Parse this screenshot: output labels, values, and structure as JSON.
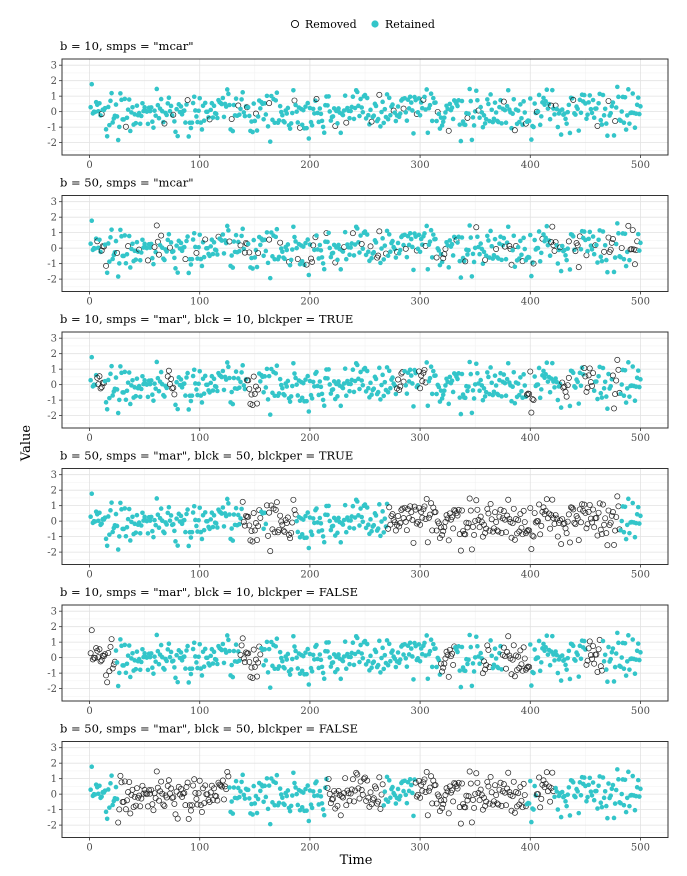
{
  "legend": {
    "removed": {
      "label": "Removed",
      "stroke": "#000000",
      "fill": "none"
    },
    "retained": {
      "label": "Retained",
      "fill": "#33C5C9"
    }
  },
  "chart_data": {
    "type": "scatter",
    "xlabel": "Time",
    "ylabel": "Value",
    "xlim": [
      -25,
      525
    ],
    "ylim": [
      -2.8,
      3.4
    ],
    "x_ticks": [
      0,
      100,
      200,
      300,
      400,
      500
    ],
    "y_ticks": [
      -2,
      -1,
      0,
      1,
      2,
      3
    ],
    "n_points": 500,
    "legend_position": "top-center",
    "grid": true,
    "panels": [
      {
        "title": "b = 10, smps = \"mcar\"",
        "removed_ranges": [
          [
            10,
            10
          ],
          [
            32,
            32
          ],
          [
            67,
            67
          ],
          [
            75,
            75
          ],
          [
            88,
            88
          ],
          [
            108,
            108
          ],
          [
            128,
            128
          ],
          [
            134,
            134
          ],
          [
            142,
            142
          ],
          [
            150,
            150
          ],
          [
            162,
            162
          ],
          [
            185,
            185
          ],
          [
            190,
            190
          ],
          [
            205,
            205
          ],
          [
            222,
            222
          ],
          [
            232,
            232
          ],
          [
            255,
            255
          ],
          [
            262,
            262
          ],
          [
            275,
            275
          ],
          [
            284,
            284
          ],
          [
            296,
            296
          ],
          [
            302,
            302
          ],
          [
            315,
            315
          ],
          [
            325,
            325
          ],
          [
            342,
            342
          ],
          [
            352,
            352
          ],
          [
            375,
            375
          ],
          [
            385,
            385
          ],
          [
            395,
            395
          ],
          [
            405,
            405
          ],
          [
            418,
            418
          ],
          [
            422,
            422
          ],
          [
            438,
            438
          ],
          [
            460,
            460
          ],
          [
            470,
            470
          ],
          [
            476,
            476
          ]
        ]
      },
      {
        "title": "b = 50, smps = \"mcar\"",
        "removed_ranges": [
          [
            6,
            6
          ],
          [
            14,
            14
          ],
          [
            24,
            24
          ],
          [
            34,
            34
          ],
          [
            44,
            44
          ],
          [
            52,
            52
          ],
          [
            58,
            58
          ],
          [
            64,
            64
          ],
          [
            72,
            72
          ],
          [
            86,
            86
          ],
          [
            96,
            96
          ],
          [
            104,
            104
          ],
          [
            116,
            116
          ],
          [
            126,
            126
          ],
          [
            136,
            136
          ],
          [
            144,
            144
          ],
          [
            152,
            152
          ],
          [
            162,
            162
          ],
          [
            172,
            172
          ],
          [
            180,
            180
          ],
          [
            188,
            188
          ],
          [
            196,
            196
          ],
          [
            204,
            204
          ],
          [
            214,
            214
          ],
          [
            222,
            222
          ],
          [
            230,
            230
          ],
          [
            238,
            238
          ],
          [
            246,
            246
          ],
          [
            254,
            254
          ],
          [
            262,
            262
          ],
          [
            268,
            268
          ],
          [
            278,
            278
          ],
          [
            286,
            286
          ],
          [
            296,
            296
          ],
          [
            304,
            304
          ],
          [
            314,
            314
          ],
          [
            322,
            322
          ],
          [
            332,
            332
          ],
          [
            340,
            340
          ],
          [
            350,
            350
          ],
          [
            358,
            358
          ],
          [
            368,
            368
          ],
          [
            376,
            376
          ],
          [
            386,
            386
          ],
          [
            392,
            392
          ],
          [
            402,
            402
          ],
          [
            410,
            410
          ],
          [
            418,
            418
          ],
          [
            426,
            426
          ],
          [
            434,
            434
          ],
          [
            442,
            442
          ],
          [
            450,
            450
          ],
          [
            458,
            458
          ],
          [
            466,
            466
          ],
          [
            474,
            474
          ],
          [
            482,
            482
          ],
          [
            488,
            488
          ],
          [
            494,
            494
          ],
          [
            418,
            422
          ],
          [
            440,
            444
          ],
          [
            470,
            474
          ],
          [
            490,
            496
          ],
          [
            10,
            12
          ],
          [
            60,
            62
          ],
          [
            140,
            142
          ],
          [
            200,
            202
          ],
          [
            260,
            262
          ],
          [
            320,
            322
          ],
          [
            380,
            382
          ]
        ]
      },
      {
        "title": "b = 10, smps = \"mar\", blck = 10, blckper = TRUE",
        "removed_ranges": [
          [
            6,
            12
          ],
          [
            70,
            76
          ],
          [
            142,
            152
          ],
          [
            278,
            284
          ],
          [
            298,
            304
          ],
          [
            396,
            402
          ],
          [
            428,
            434
          ],
          [
            448,
            456
          ],
          [
            474,
            480
          ]
        ]
      },
      {
        "title": "b = 50, smps = \"mar\", blck = 50, blckper = TRUE",
        "removed_ranges": [
          [
            138,
            154
          ],
          [
            160,
            186
          ],
          [
            270,
            480
          ]
        ]
      },
      {
        "title": "b = 10, smps = \"mar\", blck = 10, blckper = FALSE",
        "removed_ranges": [
          [
            0,
            22
          ],
          [
            136,
            154
          ],
          [
            318,
            330
          ],
          [
            356,
            362
          ],
          [
            374,
            398
          ],
          [
            450,
            464
          ]
        ]
      },
      {
        "title": "b = 50, smps = \"mar\", blck = 50, blckper = FALSE",
        "removed_ranges": [
          [
            25,
            125
          ],
          [
            215,
            265
          ],
          [
            295,
            395
          ],
          [
            405,
            420
          ]
        ]
      }
    ]
  }
}
